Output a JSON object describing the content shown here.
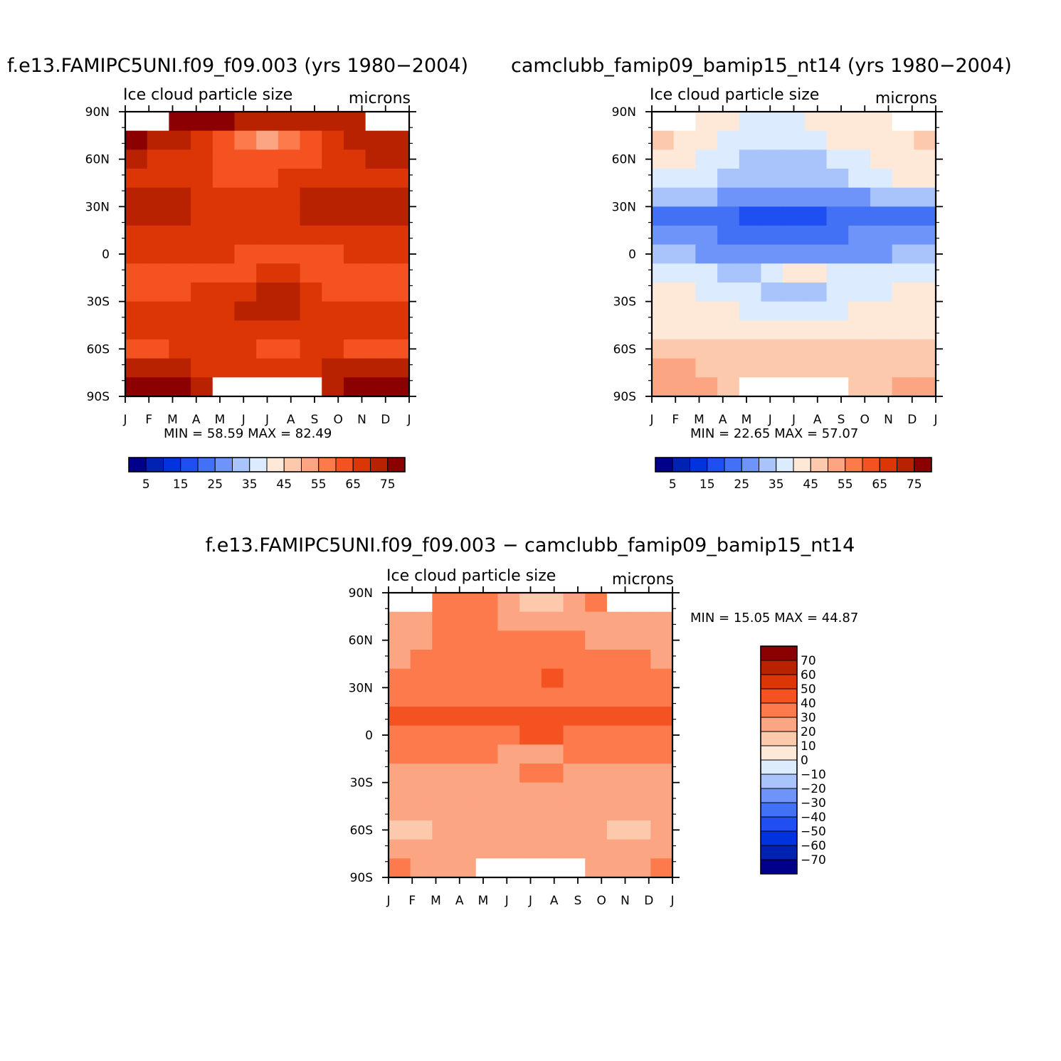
{
  "colors": {
    "palette": [
      "#00008b",
      "#0022b3",
      "#0033dd",
      "#1f4ff2",
      "#4271f5",
      "#6f94f9",
      "#a8c4fb",
      "#dcebfd",
      "#fee9d8",
      "#fdc9ad",
      "#fca583",
      "#fc7a4c",
      "#f55222",
      "#dc3506",
      "#b82200",
      "#8b0000"
    ],
    "missing": "#ffffff"
  },
  "panels": [
    {
      "title": "f.e13.FAMIPC5UNI.f09_f09.003 (yrs 1980−2004)",
      "var_label": "Ice cloud particle size",
      "units": "microns",
      "stats": "MIN =   58.59  MAX =   82.49",
      "months": [
        "J",
        "F",
        "M",
        "A",
        "M",
        "J",
        "J",
        "A",
        "S",
        "O",
        "N",
        "D",
        "J"
      ],
      "lat_labels": [
        "90N",
        "60N",
        "30N",
        "0",
        "30S",
        "60S",
        "90S"
      ],
      "grid": [
        [
          -1,
          -1,
          15,
          15,
          15,
          14,
          14,
          14,
          14,
          14,
          14,
          -1,
          -1
        ],
        [
          15,
          14,
          14,
          13,
          12,
          11,
          10,
          11,
          12,
          13,
          14,
          14,
          14
        ],
        [
          14,
          13,
          13,
          13,
          12,
          12,
          12,
          12,
          12,
          13,
          13,
          14,
          14
        ],
        [
          13,
          13,
          13,
          13,
          12,
          12,
          12,
          13,
          13,
          13,
          13,
          13,
          13
        ],
        [
          14,
          14,
          14,
          13,
          13,
          13,
          13,
          13,
          14,
          14,
          14,
          14,
          14
        ],
        [
          14,
          14,
          14,
          13,
          13,
          13,
          13,
          13,
          14,
          14,
          14,
          14,
          14
        ],
        [
          13,
          13,
          13,
          13,
          13,
          13,
          13,
          13,
          13,
          13,
          13,
          13,
          13
        ],
        [
          13,
          13,
          13,
          13,
          13,
          12,
          12,
          12,
          12,
          12,
          13,
          13,
          13
        ],
        [
          12,
          12,
          12,
          12,
          12,
          12,
          13,
          13,
          12,
          12,
          12,
          12,
          12
        ],
        [
          12,
          12,
          12,
          13,
          13,
          13,
          14,
          14,
          13,
          12,
          12,
          12,
          12
        ],
        [
          13,
          13,
          13,
          13,
          13,
          14,
          14,
          14,
          13,
          13,
          13,
          13,
          13
        ],
        [
          13,
          13,
          13,
          13,
          13,
          13,
          13,
          13,
          13,
          13,
          13,
          13,
          13
        ],
        [
          12,
          12,
          13,
          13,
          13,
          13,
          12,
          12,
          13,
          13,
          12,
          12,
          12
        ],
        [
          14,
          14,
          14,
          13,
          13,
          13,
          13,
          13,
          13,
          14,
          14,
          14,
          14
        ],
        [
          15,
          15,
          15,
          14,
          -1,
          -1,
          -1,
          -1,
          -1,
          14,
          15,
          15,
          15
        ]
      ],
      "colorbar_ticks": [
        "5",
        "15",
        "25",
        "35",
        "45",
        "55",
        "65",
        "75"
      ]
    },
    {
      "title": "camclubb_famip09_bamip15_nt14 (yrs 1980−2004)",
      "var_label": "Ice cloud particle size",
      "units": "microns",
      "stats": "MIN =   22.65  MAX =   57.07",
      "months": [
        "J",
        "F",
        "M",
        "A",
        "M",
        "J",
        "J",
        "A",
        "S",
        "O",
        "N",
        "D",
        "J"
      ],
      "lat_labels": [
        "90N",
        "60N",
        "30N",
        "0",
        "30S",
        "60S",
        "90S"
      ],
      "grid": [
        [
          -1,
          -1,
          8,
          8,
          7,
          7,
          7,
          8,
          8,
          8,
          8,
          -1,
          -1
        ],
        [
          9,
          8,
          8,
          7,
          7,
          7,
          7,
          7,
          8,
          8,
          8,
          8,
          9
        ],
        [
          8,
          8,
          7,
          7,
          6,
          6,
          6,
          6,
          7,
          7,
          8,
          8,
          8
        ],
        [
          7,
          7,
          7,
          6,
          6,
          6,
          6,
          6,
          6,
          7,
          7,
          8,
          8
        ],
        [
          6,
          6,
          6,
          5,
          5,
          5,
          5,
          5,
          5,
          5,
          6,
          6,
          6
        ],
        [
          4,
          4,
          4,
          4,
          3,
          3,
          3,
          3,
          4,
          4,
          4,
          4,
          4
        ],
        [
          5,
          5,
          5,
          4,
          4,
          4,
          4,
          4,
          4,
          5,
          5,
          5,
          5
        ],
        [
          6,
          6,
          5,
          5,
          5,
          5,
          5,
          5,
          5,
          5,
          5,
          6,
          6
        ],
        [
          7,
          7,
          7,
          6,
          6,
          7,
          8,
          8,
          7,
          7,
          7,
          7,
          7
        ],
        [
          8,
          8,
          7,
          7,
          7,
          6,
          6,
          6,
          7,
          7,
          7,
          8,
          8
        ],
        [
          8,
          8,
          8,
          8,
          7,
          7,
          7,
          7,
          7,
          8,
          8,
          8,
          8
        ],
        [
          8,
          8,
          8,
          8,
          8,
          8,
          8,
          8,
          8,
          8,
          8,
          8,
          8
        ],
        [
          9,
          9,
          9,
          9,
          9,
          9,
          9,
          9,
          9,
          9,
          9,
          9,
          9
        ],
        [
          10,
          10,
          9,
          9,
          9,
          9,
          9,
          9,
          9,
          9,
          9,
          9,
          9
        ],
        [
          10,
          10,
          10,
          9,
          -1,
          -1,
          -1,
          -1,
          -1,
          9,
          9,
          10,
          10
        ]
      ],
      "colorbar_ticks": [
        "5",
        "15",
        "25",
        "35",
        "45",
        "55",
        "65",
        "75"
      ]
    },
    {
      "title": "f.e13.FAMIPC5UNI.f09_f09.003 − camclubb_famip09_bamip15_nt14",
      "var_label": "Ice cloud particle size",
      "units": "microns",
      "stats": "MIN =   15.05  MAX =   44.87",
      "months": [
        "J",
        "F",
        "M",
        "A",
        "M",
        "J",
        "J",
        "A",
        "S",
        "O",
        "N",
        "D",
        "J"
      ],
      "lat_labels": [
        "90N",
        "60N",
        "30N",
        "0",
        "30S",
        "60S",
        "90S"
      ],
      "grid": [
        [
          -1,
          -1,
          11,
          11,
          11,
          10,
          9,
          9,
          10,
          11,
          -1,
          -1,
          -1
        ],
        [
          10,
          10,
          11,
          11,
          11,
          10,
          10,
          10,
          10,
          10,
          10,
          10,
          10
        ],
        [
          10,
          10,
          11,
          11,
          11,
          11,
          11,
          11,
          11,
          10,
          10,
          10,
          10
        ],
        [
          10,
          11,
          11,
          11,
          11,
          11,
          11,
          11,
          11,
          11,
          11,
          11,
          10
        ],
        [
          11,
          11,
          11,
          11,
          11,
          11,
          11,
          12,
          11,
          11,
          11,
          11,
          11
        ],
        [
          11,
          11,
          11,
          11,
          11,
          11,
          11,
          11,
          11,
          11,
          11,
          11,
          11
        ],
        [
          12,
          12,
          12,
          12,
          12,
          12,
          12,
          12,
          12,
          12,
          12,
          12,
          12
        ],
        [
          11,
          11,
          11,
          11,
          11,
          11,
          12,
          12,
          11,
          11,
          11,
          11,
          11
        ],
        [
          11,
          11,
          11,
          11,
          11,
          10,
          10,
          10,
          11,
          11,
          11,
          11,
          11
        ],
        [
          10,
          10,
          10,
          10,
          10,
          10,
          11,
          11,
          10,
          10,
          10,
          10,
          10
        ],
        [
          10,
          10,
          10,
          10,
          10,
          10,
          10,
          10,
          10,
          10,
          10,
          10,
          10
        ],
        [
          10,
          10,
          10,
          10,
          10,
          10,
          10,
          10,
          10,
          10,
          10,
          10,
          10
        ],
        [
          9,
          9,
          10,
          10,
          10,
          10,
          10,
          10,
          10,
          10,
          9,
          9,
          10
        ],
        [
          10,
          10,
          10,
          10,
          10,
          10,
          10,
          10,
          10,
          10,
          10,
          10,
          10
        ],
        [
          11,
          10,
          10,
          10,
          -1,
          -1,
          -1,
          -1,
          -1,
          10,
          10,
          10,
          11
        ]
      ],
      "colorbar_labels": [
        "70",
        "60",
        "50",
        "40",
        "30",
        "20",
        "10",
        "0",
        "−10",
        "−20",
        "−30",
        "−40",
        "−50",
        "−60",
        "−70"
      ]
    }
  ]
}
